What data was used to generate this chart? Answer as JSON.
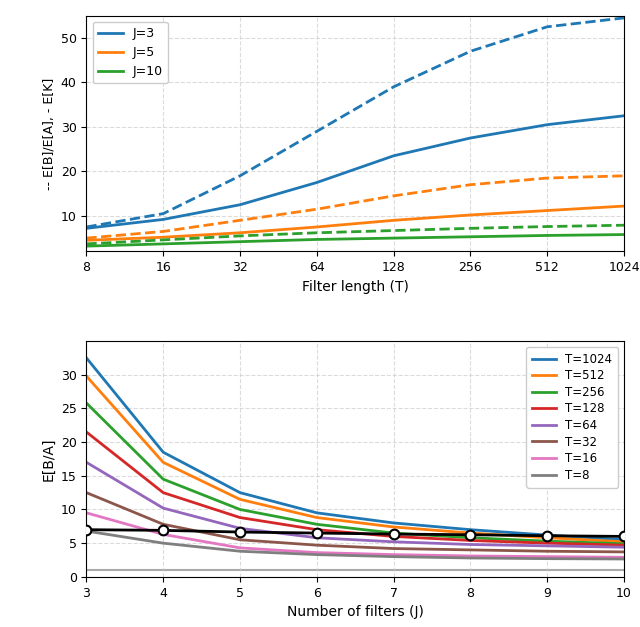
{
  "top": {
    "T_values": [
      8,
      16,
      32,
      64,
      128,
      256,
      512,
      1024
    ],
    "J3_solid": [
      7.2,
      9.2,
      12.5,
      17.5,
      23.5,
      27.5,
      30.5,
      32.5
    ],
    "J3_dashed": [
      7.5,
      10.5,
      19.0,
      29.0,
      39.0,
      47.0,
      52.5,
      54.5
    ],
    "J5_solid": [
      4.5,
      5.2,
      6.2,
      7.5,
      9.0,
      10.2,
      11.2,
      12.2
    ],
    "J5_dashed": [
      5.0,
      6.5,
      9.0,
      11.5,
      14.5,
      17.0,
      18.5,
      19.0
    ],
    "J10_solid": [
      3.2,
      3.7,
      4.2,
      4.7,
      5.0,
      5.3,
      5.6,
      5.8
    ],
    "J10_dashed": [
      3.7,
      4.6,
      5.5,
      6.2,
      6.7,
      7.2,
      7.6,
      7.9
    ],
    "colors": {
      "J3": "#1f77b4",
      "J5": "#ff7f0e",
      "J10": "#2ca02c"
    },
    "ylabel": "-- E[B]/E[A], - E[K]",
    "xlabel": "Filter length (T)",
    "ylim": [
      2,
      55
    ],
    "yticks": [
      10,
      20,
      30,
      40,
      50
    ]
  },
  "bottom": {
    "J_values": [
      3,
      4,
      5,
      6,
      7,
      8,
      9,
      10
    ],
    "T1024": [
      32.5,
      18.5,
      12.5,
      9.5,
      8.0,
      7.0,
      6.2,
      5.5
    ],
    "T512": [
      29.8,
      17.0,
      11.5,
      8.8,
      7.4,
      6.5,
      5.8,
      5.2
    ],
    "T256": [
      25.8,
      14.5,
      10.0,
      7.8,
      6.5,
      5.8,
      5.3,
      4.9
    ],
    "T128": [
      21.5,
      12.5,
      8.8,
      7.0,
      6.0,
      5.4,
      5.0,
      4.7
    ],
    "T64": [
      17.0,
      10.2,
      7.2,
      5.8,
      5.2,
      4.8,
      4.6,
      4.4
    ],
    "T32": [
      12.5,
      7.8,
      5.5,
      4.7,
      4.2,
      4.0,
      3.8,
      3.7
    ],
    "T16": [
      9.5,
      6.3,
      4.3,
      3.6,
      3.3,
      3.1,
      3.0,
      2.9
    ],
    "T8": [
      6.8,
      5.0,
      3.8,
      3.3,
      3.0,
      2.8,
      2.7,
      2.65
    ],
    "black_line": [
      7.0,
      6.9,
      6.65,
      6.5,
      6.35,
      6.25,
      6.1,
      6.0
    ],
    "colors": {
      "T1024": "#1f77b4",
      "T512": "#ff7f0e",
      "T256": "#2ca02c",
      "T128": "#d62728",
      "T64": "#9467bd",
      "T32": "#8c564b",
      "T16": "#e377c2",
      "T8": "#7f7f7f"
    },
    "hline_y": 1.0,
    "ylabel": "E[B/A]",
    "xlabel": "Number of filters (J)",
    "ylim": [
      0,
      35
    ],
    "yticks": [
      0,
      5,
      10,
      15,
      20,
      25,
      30
    ]
  }
}
